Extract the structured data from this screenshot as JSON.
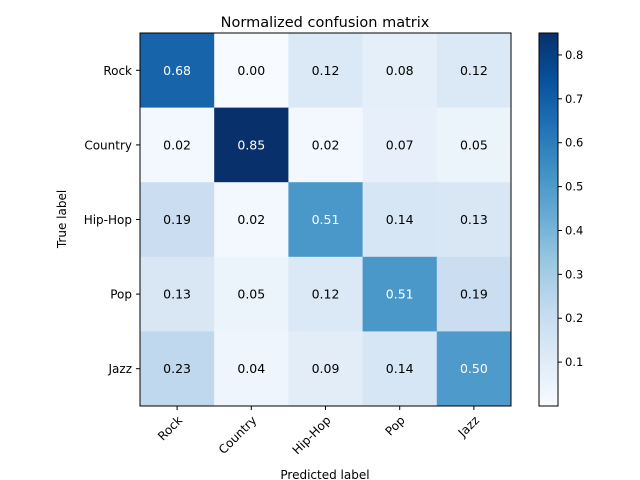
{
  "chart_data": {
    "type": "heatmap",
    "title": "Normalized confusion matrix",
    "xlabel": "Predicted label",
    "ylabel": "True label",
    "x_categories": [
      "Rock",
      "Country",
      "Hip-Hop",
      "Pop",
      "Jazz"
    ],
    "y_categories": [
      "Rock",
      "Country",
      "Hip-Hop",
      "Pop",
      "Jazz"
    ],
    "values": [
      [
        0.68,
        0.0,
        0.12,
        0.08,
        0.12
      ],
      [
        0.02,
        0.85,
        0.02,
        0.07,
        0.05
      ],
      [
        0.19,
        0.02,
        0.51,
        0.14,
        0.13
      ],
      [
        0.13,
        0.05,
        0.12,
        0.51,
        0.19
      ],
      [
        0.23,
        0.04,
        0.09,
        0.14,
        0.5
      ]
    ],
    "value_labels": [
      [
        "0.68",
        "0.00",
        "0.12",
        "0.08",
        "0.12"
      ],
      [
        "0.02",
        "0.85",
        "0.02",
        "0.07",
        "0.05"
      ],
      [
        "0.19",
        "0.02",
        "0.51",
        "0.14",
        "0.13"
      ],
      [
        "0.13",
        "0.05",
        "0.12",
        "0.51",
        "0.19"
      ],
      [
        "0.23",
        "0.04",
        "0.09",
        "0.14",
        "0.50"
      ]
    ],
    "colormap": "Blues",
    "color_range": [
      0.0,
      0.85
    ],
    "colorbar_ticks": [
      "0.1",
      "0.2",
      "0.3",
      "0.4",
      "0.5",
      "0.6",
      "0.7",
      "0.8"
    ],
    "colorbar_tick_values": [
      0.1,
      0.2,
      0.3,
      0.4,
      0.5,
      0.6,
      0.7,
      0.8
    ],
    "x_tick_rotation": 45,
    "grid": false,
    "legend": "colorbar right"
  }
}
